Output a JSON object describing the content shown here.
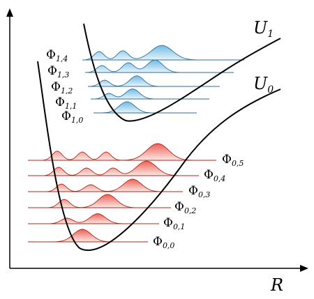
{
  "axes": {
    "x_label": "R"
  },
  "curves": [
    {
      "id": "u1",
      "label": "U",
      "sub": "1"
    },
    {
      "id": "u0",
      "label": "U",
      "sub": "0"
    }
  ],
  "states_upper": [
    {
      "label": "Φ",
      "sub": "1,4"
    },
    {
      "label": "Φ",
      "sub": "1,3"
    },
    {
      "label": "Φ",
      "sub": "1,2"
    },
    {
      "label": "Φ",
      "sub": "1,1"
    },
    {
      "label": "Φ",
      "sub": "1,0"
    }
  ],
  "states_lower": [
    {
      "label": "Φ",
      "sub": "0,5"
    },
    {
      "label": "Φ",
      "sub": "0,4"
    },
    {
      "label": "Φ",
      "sub": "0,3"
    },
    {
      "label": "Φ",
      "sub": "0,2"
    },
    {
      "label": "Φ",
      "sub": "0,1"
    },
    {
      "label": "Φ",
      "sub": "0,0"
    }
  ],
  "colors": {
    "upper_fill": "#7fc3ea",
    "upper_stroke": "#2b6f9c",
    "lower_fill": "#ec6f62",
    "lower_stroke": "#b02418",
    "axis": "#000000",
    "curve": "#000000"
  }
}
